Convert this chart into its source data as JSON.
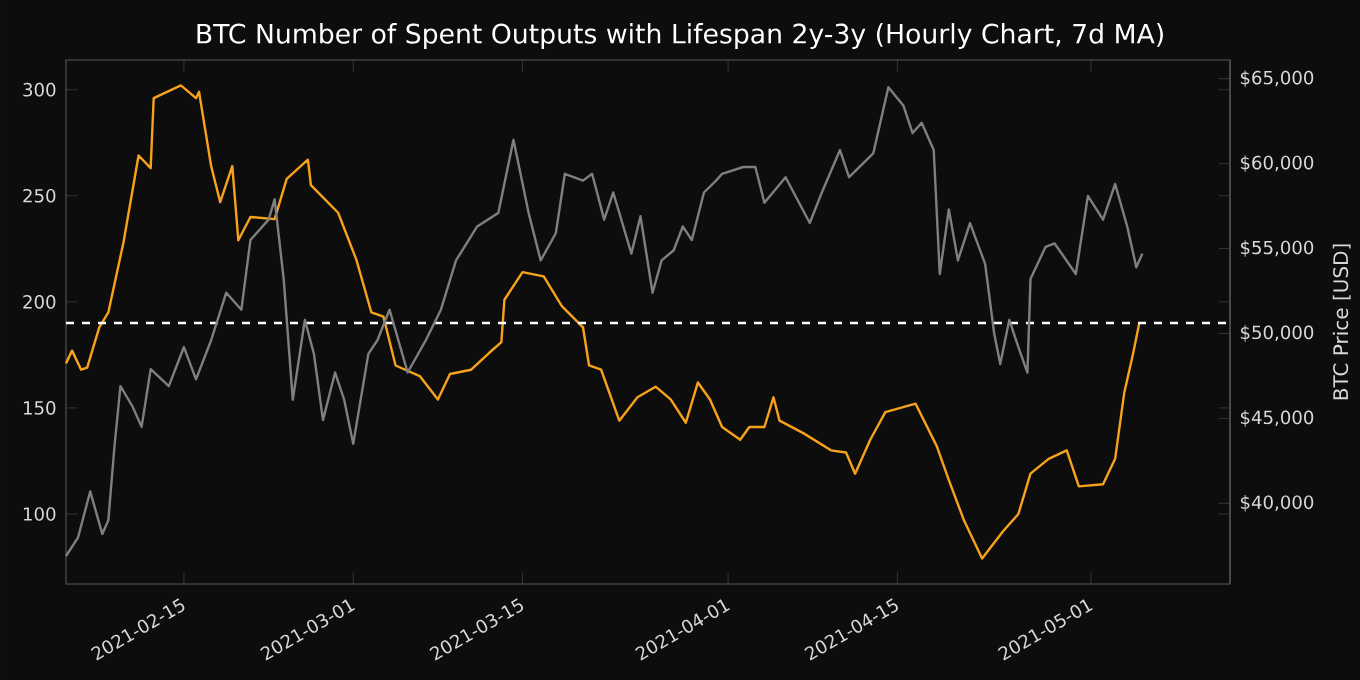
{
  "chart_data": {
    "type": "line",
    "title": "BTC Number of Spent Outputs with Lifespan 2y-3y (Hourly Chart, 7d MA)",
    "y2label": "BTC Price [USD]",
    "xlim": [
      "2021-02-05T06:00",
      "2021-05-12T12:00"
    ],
    "xticks": [
      "2021-02-15",
      "2021-03-01",
      "2021-03-15",
      "2021-04-01",
      "2021-04-15",
      "2021-05-01"
    ],
    "ylim": [
      67,
      314
    ],
    "yticks": [
      100,
      150,
      200,
      250,
      300
    ],
    "y2lim": [
      35250,
      66100
    ],
    "y2ticks": [
      {
        "value": 40000,
        "label": "$40,000"
      },
      {
        "value": 45000,
        "label": "$45,000"
      },
      {
        "value": 50000,
        "label": "$50,000"
      },
      {
        "value": 55000,
        "label": "$55,000"
      },
      {
        "value": 60000,
        "label": "$60,000"
      },
      {
        "value": 65000,
        "label": "$65,000"
      }
    ],
    "ref_lines": [
      {
        "axis": "y",
        "value": 190,
        "color": "#ffffff",
        "line_style": "dashed"
      }
    ],
    "series": [
      {
        "color": "#7f7f7f",
        "axis": "y2",
        "x": [
          "2021-02-05T06:00",
          "2021-02-06T06:00",
          "2021-02-07T06:00",
          "2021-02-08T06:00",
          "2021-02-08T18:00",
          "2021-02-09T06:00",
          "2021-02-09T18:00",
          "2021-02-10T18:00",
          "2021-02-11T12:00",
          "2021-02-12T06:00",
          "2021-02-13T18:00",
          "2021-02-15T00:00",
          "2021-02-16T00:00",
          "2021-02-17T06:00",
          "2021-02-18T12:00",
          "2021-02-19T18:00",
          "2021-02-20T12:00",
          "2021-02-22T00:00",
          "2021-02-22T12:00",
          "2021-02-23T06:00",
          "2021-02-24T00:00",
          "2021-02-25T00:00",
          "2021-02-25T18:00",
          "2021-02-26T12:00",
          "2021-02-27T12:00",
          "2021-02-28T06:00",
          "2021-03-01T00:00",
          "2021-03-02T06:00",
          "2021-03-03T00:00",
          "2021-03-04T00:00",
          "2021-03-05T12:00",
          "2021-03-07T00:00",
          "2021-03-08T06:00",
          "2021-03-09T12:00",
          "2021-03-11T06:00",
          "2021-03-13T00:00",
          "2021-03-14T06:00",
          "2021-03-15T12:00",
          "2021-03-16T12:00",
          "2021-03-17T18:00",
          "2021-03-18T12:00",
          "2021-03-20T00:00",
          "2021-03-20T18:00",
          "2021-03-21T18:00",
          "2021-03-22T12:00",
          "2021-03-24T00:00",
          "2021-03-24T18:00",
          "2021-03-25T18:00",
          "2021-03-26T12:00",
          "2021-03-27T12:00",
          "2021-03-28T06:00",
          "2021-03-29T00:00",
          "2021-03-30T00:00",
          "2021-03-31T00:00",
          "2021-03-31T12:00",
          "2021-04-02T06:00",
          "2021-04-03T06:00",
          "2021-04-04T00:00",
          "2021-04-05T18:00",
          "2021-04-07T18:00",
          "2021-04-08T18:00",
          "2021-04-10T06:00",
          "2021-04-11T00:00",
          "2021-04-13T00:00",
          "2021-04-14T06:00",
          "2021-04-15T12:00",
          "2021-04-16T06:00",
          "2021-04-17T00:00",
          "2021-04-18T00:00",
          "2021-04-18T12:00",
          "2021-04-19T06:00",
          "2021-04-20T00:00",
          "2021-04-21T00:00",
          "2021-04-22T06:00",
          "2021-04-23T00:00",
          "2021-04-23T12:00",
          "2021-04-24T06:00",
          "2021-04-25T00:00",
          "2021-04-25T18:00",
          "2021-04-26T00:00",
          "2021-04-27T06:00",
          "2021-04-28T00:00",
          "2021-04-29T18:00",
          "2021-04-30T18:00",
          "2021-05-02T00:00",
          "2021-05-03T00:00",
          "2021-05-04T00:00",
          "2021-05-04T18:00",
          "2021-05-05T06:00"
        ],
        "values": [
          36900,
          38000,
          40700,
          38200,
          39000,
          43300,
          46900,
          45700,
          44500,
          47900,
          46900,
          49200,
          47300,
          49600,
          52400,
          51400,
          55500,
          56700,
          57900,
          53200,
          46100,
          50800,
          48800,
          44900,
          47700,
          46100,
          43500,
          48800,
          49600,
          51400,
          47700,
          49600,
          51400,
          54300,
          56300,
          57100,
          61400,
          57100,
          54300,
          55900,
          59400,
          59000,
          59400,
          56700,
          58300,
          54700,
          56900,
          52400,
          54300,
          54900,
          56300,
          55500,
          58300,
          59000,
          59400,
          59800,
          59800,
          57700,
          59200,
          56500,
          58300,
          60800,
          59200,
          60600,
          64500,
          63400,
          61800,
          62400,
          60800,
          53500,
          57300,
          54300,
          56500,
          54100,
          50000,
          48200,
          50800,
          49200,
          47700,
          53200,
          55100,
          55300,
          53500,
          58100,
          56700,
          58800,
          56300,
          53900,
          54700
        ]
      },
      {
        "color": "#f7a21b",
        "x": [
          "2021-02-05T06:00",
          "2021-02-05T18:00",
          "2021-02-06T12:00",
          "2021-02-07T00:00",
          "2021-02-08T00:00",
          "2021-02-08T18:00",
          "2021-02-10T00:00",
          "2021-02-11T06:00",
          "2021-02-12T06:00",
          "2021-02-12T12:00",
          "2021-02-14T18:00",
          "2021-02-16T00:00",
          "2021-02-16T06:00",
          "2021-02-17T06:00",
          "2021-02-18T00:00",
          "2021-02-19T00:00",
          "2021-02-19T12:00",
          "2021-02-20T12:00",
          "2021-02-22T12:00",
          "2021-02-23T12:00",
          "2021-02-25T06:00",
          "2021-02-25T12:00",
          "2021-02-27T18:00",
          "2021-03-01T06:00",
          "2021-03-02T12:00",
          "2021-03-03T12:00",
          "2021-03-04T12:00",
          "2021-03-06T12:00",
          "2021-03-08T00:00",
          "2021-03-09T00:00",
          "2021-03-10T18:00",
          "2021-03-12T06:00",
          "2021-03-13T06:00",
          "2021-03-13T12:00",
          "2021-03-15T00:00",
          "2021-03-16T18:00",
          "2021-03-18T06:00",
          "2021-03-20T00:00",
          "2021-03-20T12:00",
          "2021-03-21T12:00",
          "2021-03-23T00:00",
          "2021-03-24T12:00",
          "2021-03-26T00:00",
          "2021-03-27T06:00",
          "2021-03-28T12:00",
          "2021-03-29T12:00",
          "2021-03-30T12:00",
          "2021-03-31T12:00",
          "2021-04-02T00:00",
          "2021-04-02T18:00",
          "2021-04-04T00:00",
          "2021-04-04T18:00",
          "2021-04-05T06:00",
          "2021-04-07T06:00",
          "2021-04-09T12:00",
          "2021-04-10T18:00",
          "2021-04-11T12:00",
          "2021-04-12T18:00",
          "2021-04-14T00:00",
          "2021-04-16T12:00",
          "2021-04-18T06:00",
          "2021-04-19T06:00",
          "2021-04-20T12:00",
          "2021-04-22T00:00",
          "2021-04-23T18:00",
          "2021-04-25T00:00",
          "2021-04-26T00:00",
          "2021-04-27T12:00",
          "2021-04-29T00:00",
          "2021-04-30T00:00",
          "2021-05-02T00:00",
          "2021-05-03T00:00",
          "2021-05-03T18:00",
          "2021-05-04T12:00",
          "2021-05-05T00:00"
        ],
        "values": [
          171,
          177,
          168,
          169,
          188,
          195,
          228,
          269,
          263,
          296,
          302,
          296,
          299,
          264,
          247,
          264,
          229,
          240,
          239,
          258,
          267,
          255,
          242,
          220,
          195,
          193,
          170,
          165,
          154,
          166,
          168,
          176,
          181,
          201,
          214,
          212,
          198,
          188,
          170,
          168,
          144,
          155,
          160,
          154,
          143,
          162,
          154,
          141,
          135,
          141,
          141,
          155,
          144,
          138,
          130,
          129,
          119,
          135,
          148,
          152,
          132,
          116,
          97,
          79,
          92,
          100,
          119,
          126,
          130,
          113,
          114,
          126,
          157,
          176,
          190
        ]
      }
    ]
  }
}
